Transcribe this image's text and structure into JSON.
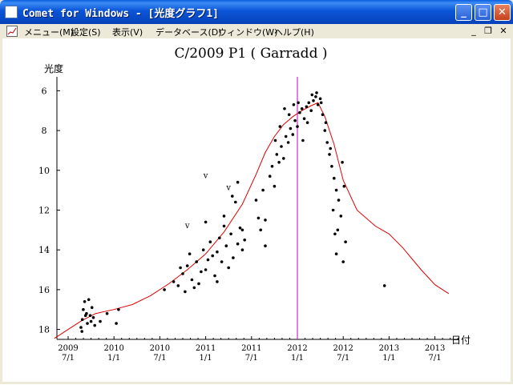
{
  "window": {
    "title": "Comet for Windows - [光度グラフ1]",
    "controls": {
      "minimize": "_",
      "maximize": "□",
      "close": "✕"
    }
  },
  "menu": {
    "items": [
      "メニュー(M)",
      "設定(S)",
      "表示(V)",
      "データベース(D)",
      "ウィンドウ(W)",
      "ヘルプ(H)"
    ],
    "mdi_controls": {
      "minimize": "_",
      "restore": "❐",
      "close": "✕"
    }
  },
  "graph": {
    "title": "C/2009 P1 ( Garradd )",
    "ylabel": "光度",
    "xlabel": "日付",
    "perihelion_marker_color": "#c000c0",
    "curve_color": "#e00000"
  },
  "chart_data": {
    "type": "scatter",
    "title": "C/2009 P1 ( Garradd )",
    "ylabel": "光度",
    "xlabel": "日付",
    "ylim": [
      18.5,
      5.3
    ],
    "y_reversed": true,
    "yticks": [
      "6",
      "8",
      "10",
      "12",
      "14",
      "16",
      "18"
    ],
    "xticks": [
      {
        "year": "2009",
        "date": "7/1"
      },
      {
        "year": "2010",
        "date": "1/1"
      },
      {
        "year": "2010",
        "date": "7/1"
      },
      {
        "year": "2011",
        "date": "1/1"
      },
      {
        "year": "2011",
        "date": "7/1"
      },
      {
        "year": "2012",
        "date": "1/1"
      },
      {
        "year": "2012",
        "date": "7/1"
      },
      {
        "year": "2013",
        "date": "1/1"
      },
      {
        "year": "2013",
        "date": "7/1"
      }
    ],
    "vertical_marker_x": 5.0,
    "series": [
      {
        "kind": "curve",
        "color": "#e00000",
        "points": [
          [
            -0.3,
            18.45
          ],
          [
            0.0,
            18.0
          ],
          [
            0.3,
            17.55
          ],
          [
            0.6,
            17.2
          ],
          [
            1.0,
            17.0
          ],
          [
            1.4,
            16.75
          ],
          [
            1.8,
            16.3
          ],
          [
            2.2,
            15.7
          ],
          [
            2.6,
            15.0
          ],
          [
            3.0,
            14.2
          ],
          [
            3.4,
            13.1
          ],
          [
            3.8,
            11.7
          ],
          [
            4.1,
            10.2
          ],
          [
            4.3,
            9.1
          ],
          [
            4.5,
            8.3
          ],
          [
            4.7,
            7.7
          ],
          [
            4.9,
            7.3
          ],
          [
            5.1,
            7.0
          ],
          [
            5.3,
            6.75
          ],
          [
            5.45,
            6.6
          ],
          [
            5.6,
            7.3
          ],
          [
            5.8,
            8.7
          ],
          [
            6.0,
            10.5
          ],
          [
            6.3,
            12.0
          ],
          [
            6.7,
            12.8
          ],
          [
            7.0,
            13.2
          ],
          [
            7.3,
            13.9
          ],
          [
            7.7,
            15.0
          ],
          [
            8.0,
            15.75
          ],
          [
            8.3,
            16.2
          ]
        ]
      },
      {
        "kind": "observations",
        "color": "#000000",
        "points": [
          [
            0.28,
            17.9
          ],
          [
            0.31,
            17.5
          ],
          [
            0.33,
            17.0
          ],
          [
            0.36,
            16.6
          ],
          [
            0.4,
            17.2
          ],
          [
            0.42,
            17.7
          ],
          [
            0.45,
            16.5
          ],
          [
            0.48,
            17.3
          ],
          [
            0.5,
            17.6
          ],
          [
            0.52,
            16.9
          ],
          [
            0.55,
            17.4
          ],
          [
            0.58,
            17.8
          ],
          [
            0.3,
            18.1
          ],
          [
            0.38,
            17.3
          ],
          [
            0.7,
            17.6
          ],
          [
            0.85,
            17.2
          ],
          [
            1.05,
            17.7
          ],
          [
            1.1,
            17.0
          ],
          [
            2.1,
            16.0
          ],
          [
            2.3,
            15.6
          ],
          [
            2.5,
            15.2
          ],
          [
            2.6,
            14.8
          ],
          [
            2.7,
            15.5
          ],
          [
            2.8,
            14.6
          ],
          [
            2.9,
            15.1
          ],
          [
            2.95,
            14.0
          ],
          [
            3.0,
            15.0
          ],
          [
            3.05,
            14.5
          ],
          [
            3.1,
            13.6
          ],
          [
            3.15,
            14.3
          ],
          [
            3.2,
            15.3
          ],
          [
            3.25,
            14.1
          ],
          [
            3.3,
            13.4
          ],
          [
            3.35,
            14.6
          ],
          [
            3.4,
            12.8
          ],
          [
            3.45,
            13.8
          ],
          [
            3.5,
            14.9
          ],
          [
            3.55,
            13.2
          ],
          [
            3.6,
            14.4
          ],
          [
            3.65,
            11.6
          ],
          [
            3.7,
            13.7
          ],
          [
            3.75,
            12.9
          ],
          [
            3.8,
            14.0
          ],
          [
            3.85,
            13.5
          ],
          [
            2.4,
            15.8
          ],
          [
            2.55,
            16.1
          ],
          [
            2.75,
            15.9
          ],
          [
            2.85,
            15.7
          ],
          [
            2.45,
            14.9
          ],
          [
            2.65,
            14.2
          ],
          [
            3.0,
            12.6
          ],
          [
            3.25,
            15.6
          ],
          [
            3.4,
            12.3
          ],
          [
            3.58,
            11.3
          ],
          [
            3.7,
            10.6
          ],
          [
            3.8,
            13.0
          ],
          [
            4.1,
            11.5
          ],
          [
            4.15,
            12.4
          ],
          [
            4.2,
            13.0
          ],
          [
            4.25,
            11.0
          ],
          [
            4.3,
            13.8
          ],
          [
            4.4,
            10.3
          ],
          [
            4.45,
            9.8
          ],
          [
            4.5,
            10.8
          ],
          [
            4.55,
            9.2
          ],
          [
            4.6,
            9.6
          ],
          [
            4.65,
            8.8
          ],
          [
            4.7,
            9.4
          ],
          [
            4.75,
            8.3
          ],
          [
            4.8,
            8.6
          ],
          [
            4.85,
            7.9
          ],
          [
            4.9,
            8.2
          ],
          [
            4.95,
            7.5
          ],
          [
            5.0,
            7.8
          ],
          [
            5.05,
            7.1
          ],
          [
            5.1,
            6.9
          ],
          [
            5.15,
            7.4
          ],
          [
            5.2,
            6.8
          ],
          [
            5.25,
            6.6
          ],
          [
            5.3,
            7.0
          ],
          [
            5.35,
            6.5
          ],
          [
            5.4,
            6.3
          ],
          [
            5.45,
            6.7
          ],
          [
            5.5,
            6.4
          ],
          [
            5.55,
            7.2
          ],
          [
            5.6,
            8.0
          ],
          [
            5.65,
            8.6
          ],
          [
            5.7,
            9.2
          ],
          [
            5.75,
            9.8
          ],
          [
            5.8,
            10.4
          ],
          [
            5.85,
            11.0
          ],
          [
            4.3,
            12.5
          ],
          [
            4.52,
            8.5
          ],
          [
            4.62,
            7.8
          ],
          [
            4.72,
            6.9
          ],
          [
            4.82,
            7.2
          ],
          [
            4.92,
            6.7
          ],
          [
            5.02,
            6.6
          ],
          [
            5.12,
            8.5
          ],
          [
            5.22,
            7.6
          ],
          [
            5.32,
            6.2
          ],
          [
            5.42,
            6.1
          ],
          [
            5.52,
            6.6
          ],
          [
            5.62,
            7.6
          ],
          [
            5.72,
            8.9
          ],
          [
            5.78,
            12.0
          ],
          [
            5.82,
            13.2
          ],
          [
            5.85,
            14.2
          ],
          [
            5.88,
            13.0
          ],
          [
            5.9,
            11.5
          ],
          [
            5.95,
            12.3
          ],
          [
            6.0,
            14.6
          ],
          [
            6.05,
            13.6
          ],
          [
            6.02,
            10.8
          ],
          [
            5.98,
            9.6
          ],
          [
            6.9,
            15.8
          ]
        ]
      }
    ],
    "annotations": [
      {
        "text": "v",
        "x": 3.0,
        "y": 10.4
      },
      {
        "text": "v",
        "x": 3.5,
        "y": 11.0
      },
      {
        "text": "v",
        "x": 2.6,
        "y": 12.9
      }
    ]
  }
}
